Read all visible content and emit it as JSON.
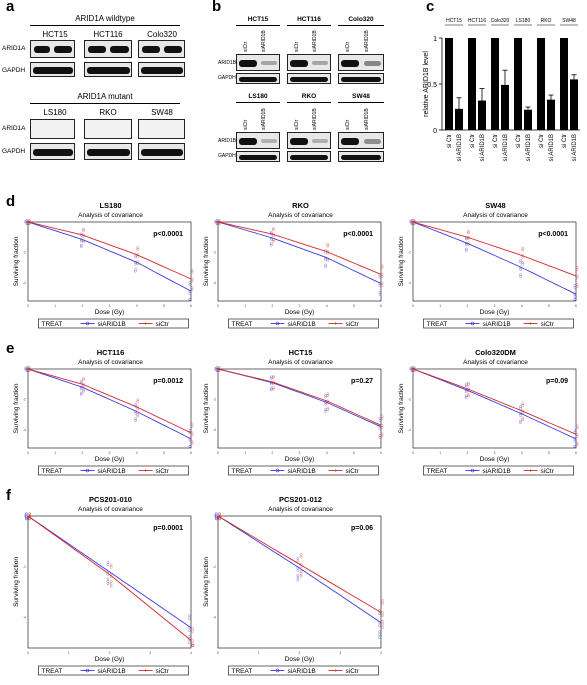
{
  "panel_labels": {
    "a": "a",
    "b": "b",
    "c": "c",
    "d": "d",
    "e": "e",
    "f": "f"
  },
  "panel_a": {
    "wildtype_title": "ARID1A wildtype",
    "wildtype_lines": [
      "HCT15",
      "HCT116",
      "Colo320"
    ],
    "mutant_title": "ARID1A mutant",
    "mutant_lines": [
      "LS180",
      "RKO",
      "SW48"
    ],
    "row_target": "ARID1A",
    "row_loading": "GAPDH"
  },
  "panel_b": {
    "top_lines": [
      "HCT15",
      "HCT116",
      "Colo320"
    ],
    "bottom_lines": [
      "LS180",
      "RKO",
      "SW48"
    ],
    "lanes": [
      "siCtr",
      "siARID1B"
    ],
    "row_target": "ARID1B",
    "row_loading": "GAPDH"
  },
  "chart_data": [
    {
      "id": "c",
      "type": "bar",
      "ylabel": "relative ARID1B level",
      "ylim": [
        0,
        1
      ],
      "yticks": [
        "0",
        "0.5",
        "1"
      ],
      "groups": [
        "HCT15",
        "HCT116",
        "Colo320",
        "LS180",
        "RKO",
        "SW48"
      ],
      "tick_labels": [
        "si Ctr",
        "si ARID1B"
      ],
      "series": [
        {
          "name": "si Ctr",
          "values": [
            1,
            1,
            1,
            1,
            1,
            1
          ]
        },
        {
          "name": "si ARID1B",
          "values": [
            0.23,
            0.32,
            0.49,
            0.22,
            0.33,
            0.55
          ],
          "errors": [
            0.12,
            0.13,
            0.16,
            0.03,
            0.05,
            0.05
          ]
        }
      ]
    },
    {
      "id": "d1",
      "type": "scatter",
      "title": "LS180",
      "subtitle": "Analysis of covariance",
      "pvalue": "p<0.0001",
      "xlabel": "Dose (Gy)",
      "ylabel": "Surviving fraction",
      "x": [
        0,
        2,
        4,
        6
      ],
      "series": [
        {
          "name": "siARID1B",
          "values": [
            0,
            -1.15,
            -2.65,
            -4.55
          ]
        },
        {
          "name": "siCtr",
          "values": [
            0,
            -0.85,
            -2.15,
            -3.75
          ]
        }
      ],
      "legend": {
        "title": "TREAT",
        "entries": [
          "siARID1B",
          "siCtr"
        ]
      }
    },
    {
      "id": "d2",
      "type": "scatter",
      "title": "RKO",
      "subtitle": "Analysis of covariance",
      "pvalue": "p<0.0001",
      "xlabel": "Dose (Gy)",
      "ylabel": "Surviving fraction",
      "x": [
        0,
        2,
        4,
        6
      ],
      "series": [
        {
          "name": "siARID1B",
          "values": [
            0,
            -1.05,
            -2.35,
            -4.05
          ]
        },
        {
          "name": "siCtr",
          "values": [
            0,
            -0.8,
            -1.95,
            -3.45
          ]
        }
      ],
      "legend": {
        "title": "TREAT",
        "entries": [
          "siARID1B",
          "siCtr"
        ]
      }
    },
    {
      "id": "d3",
      "type": "scatter",
      "title": "SW48",
      "subtitle": "Analysis of covariance",
      "pvalue": "p<0.0001",
      "xlabel": "Dose (Gy)",
      "ylabel": "Surviving fraction",
      "x": [
        0,
        2,
        4,
        6
      ],
      "series": [
        {
          "name": "siARID1B",
          "values": [
            0,
            -1.4,
            -3.0,
            -4.75
          ]
        },
        {
          "name": "siCtr",
          "values": [
            0,
            -1.0,
            -2.2,
            -3.55
          ]
        }
      ],
      "legend": {
        "title": "TREAT",
        "entries": [
          "siARID1B",
          "siCtr"
        ]
      }
    },
    {
      "id": "e1",
      "type": "scatter",
      "title": "HCT116",
      "subtitle": "Analysis of covariance",
      "pvalue": "p=0.0012",
      "xlabel": "Dose (Gy)",
      "ylabel": "Surviving fraction",
      "x": [
        0,
        2,
        4,
        6
      ],
      "series": [
        {
          "name": "siARID1B",
          "values": [
            0,
            -1.2,
            -2.8,
            -4.6
          ]
        },
        {
          "name": "siCtr",
          "values": [
            0,
            -1.0,
            -2.5,
            -4.2
          ]
        }
      ],
      "legend": {
        "title": "TREAT",
        "entries": [
          "siARID1B",
          "siCtr"
        ]
      }
    },
    {
      "id": "e2",
      "type": "scatter",
      "title": "HCT15",
      "subtitle": "Analysis of covariance",
      "pvalue": "p=0.27",
      "xlabel": "Dose (Gy)",
      "ylabel": "Surviving fraction",
      "x": [
        0,
        2,
        4,
        6
      ],
      "series": [
        {
          "name": "siARID1B",
          "values": [
            0,
            -0.9,
            -2.2,
            -3.8
          ]
        },
        {
          "name": "siCtr",
          "values": [
            0,
            -0.85,
            -2.1,
            -3.7
          ]
        }
      ],
      "legend": {
        "title": "TREAT",
        "entries": [
          "siARID1B",
          "siCtr"
        ]
      }
    },
    {
      "id": "e3",
      "type": "scatter",
      "title": "Colo320DM",
      "subtitle": "Analysis of covariance",
      "pvalue": "p=0.09",
      "xlabel": "Dose (Gy)",
      "ylabel": "Surviving fraction",
      "x": [
        0,
        2,
        4,
        6
      ],
      "series": [
        {
          "name": "siARID1B",
          "values": [
            0,
            -1.4,
            -2.95,
            -4.6
          ]
        },
        {
          "name": "siCtr",
          "values": [
            0,
            -1.3,
            -2.75,
            -4.3
          ]
        }
      ],
      "legend": {
        "title": "TREAT",
        "entries": [
          "siARID1B",
          "siCtr"
        ]
      }
    },
    {
      "id": "f1",
      "type": "scatter",
      "title": "PCS201-010",
      "subtitle": "Analysis of covariance",
      "pvalue": "p=0.0001",
      "xlabel": "Dose (Gy)",
      "ylabel": "Surviving fraction",
      "x": [
        0,
        2,
        4
      ],
      "series": [
        {
          "name": "siARID1B",
          "values": [
            0,
            -2.2,
            -4.4
          ]
        },
        {
          "name": "siCtr",
          "values": [
            0,
            -2.3,
            -4.9
          ]
        }
      ],
      "legend": {
        "title": "TREAT",
        "entries": [
          "siARID1B",
          "siCtr"
        ]
      }
    },
    {
      "id": "f2",
      "type": "scatter",
      "title": "PCS201-012",
      "subtitle": "Analysis of covariance",
      "pvalue": "p=0.06",
      "xlabel": "Dose (Gy)",
      "ylabel": "Surviving fraction",
      "x": [
        0,
        2,
        4
      ],
      "series": [
        {
          "name": "siARID1B",
          "values": [
            0,
            -2.05,
            -4.2
          ]
        },
        {
          "name": "siCtr",
          "values": [
            0,
            -1.9,
            -3.8
          ]
        }
      ],
      "legend": {
        "title": "TREAT",
        "entries": [
          "siARID1B",
          "siCtr"
        ]
      }
    }
  ],
  "colors": {
    "siARID1B": "#3a3adf",
    "siCtr": "#d42a2a"
  }
}
